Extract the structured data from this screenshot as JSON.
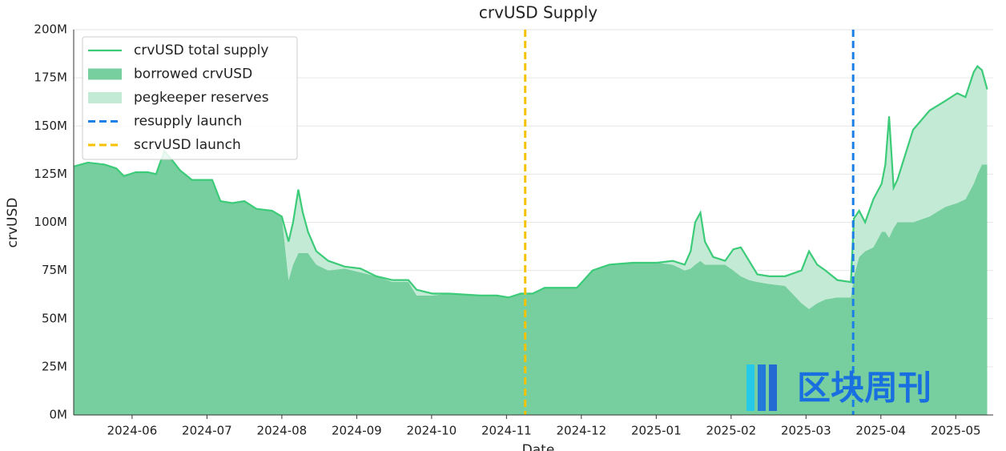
{
  "chart_data": {
    "type": "area",
    "title": "crvUSD Supply",
    "xlabel": "Date",
    "ylabel": "crvUSD",
    "x": [
      5.22,
      5.41,
      5.63,
      5.79,
      5.89,
      6.05,
      6.21,
      6.32,
      6.43,
      6.54,
      6.64,
      6.8,
      7.07,
      7.18,
      7.34,
      7.5,
      7.66,
      7.87,
      8.0,
      8.09,
      8.15,
      8.22,
      8.28,
      8.35,
      8.46,
      8.62,
      8.84,
      9.05,
      9.26,
      9.48,
      9.69,
      9.8,
      10.01,
      10.23,
      10.65,
      10.87,
      11.03,
      11.19,
      11.35,
      11.51,
      11.94,
      12.15,
      12.37,
      12.69,
      13.01,
      13.22,
      13.38,
      13.46,
      13.52,
      13.59,
      13.65,
      13.76,
      13.92,
      14.03,
      14.13,
      14.24,
      14.35,
      14.51,
      14.72,
      14.94,
      15.04,
      15.15,
      15.26,
      15.42,
      15.6,
      15.64,
      15.71,
      15.79,
      15.9,
      16.01,
      16.06,
      16.11,
      16.17,
      16.22,
      16.43,
      16.65,
      16.86,
      17.02,
      17.13,
      17.24,
      17.29,
      17.35,
      17.42
    ],
    "series": [
      {
        "name": "crvUSD total supply",
        "style": "line",
        "color": "#3ccb78",
        "values": [
          129,
          131,
          130,
          128,
          124,
          126,
          126,
          125,
          137,
          132,
          127,
          122,
          122,
          111,
          110,
          111,
          107,
          106,
          103,
          90,
          100,
          117,
          105,
          95,
          85,
          80,
          77,
          76,
          72,
          70,
          70,
          65,
          63,
          63,
          62,
          62,
          61,
          63,
          63,
          66,
          66,
          75,
          78,
          79,
          79,
          80,
          78,
          85,
          100,
          105,
          90,
          82,
          80,
          86,
          87,
          80,
          73,
          72,
          72,
          75,
          85,
          78,
          75,
          70,
          69,
          102,
          106,
          100,
          112,
          120,
          130,
          155,
          118,
          122,
          148,
          158,
          163,
          167,
          165,
          178,
          181,
          179,
          169
        ]
      },
      {
        "name": "borrowed crvUSD",
        "style": "area",
        "color": "#77cf9f",
        "values": [
          129,
          131,
          130,
          128,
          124,
          126,
          126,
          125,
          137,
          132,
          127,
          122,
          122,
          111,
          110,
          111,
          107,
          106,
          103,
          70,
          78,
          84,
          84,
          84,
          78,
          75,
          76,
          74,
          72,
          69,
          69,
          62,
          62,
          63,
          62,
          62,
          61,
          63,
          63,
          66,
          66,
          75,
          78,
          79,
          79,
          78,
          75,
          76,
          78,
          80,
          78,
          78,
          78,
          75,
          72,
          70,
          69,
          68,
          67,
          58,
          55,
          58,
          60,
          61,
          61,
          72,
          82,
          85,
          87,
          95,
          95,
          92,
          97,
          100,
          100,
          103,
          108,
          110,
          112,
          120,
          125,
          130,
          130
        ]
      },
      {
        "name": "pegkeeper reserves",
        "style": "stacked-area",
        "color": "#c3ead4",
        "values": [
          0,
          0,
          0,
          0,
          0,
          0,
          0,
          0,
          0,
          0,
          0,
          0,
          0,
          0,
          0,
          0,
          0,
          0,
          0,
          20,
          22,
          33,
          21,
          11,
          7,
          5,
          1,
          2,
          0,
          1,
          1,
          3,
          1,
          0,
          0,
          0,
          0,
          0,
          0,
          0,
          0,
          0,
          0,
          0,
          0,
          2,
          3,
          9,
          22,
          25,
          12,
          4,
          2,
          11,
          15,
          10,
          4,
          4,
          5,
          17,
          30,
          20,
          15,
          9,
          8,
          30,
          24,
          15,
          25,
          25,
          35,
          63,
          21,
          22,
          48,
          55,
          55,
          57,
          53,
          58,
          56,
          49,
          39
        ]
      }
    ],
    "vlines": [
      {
        "name": "resupply launch",
        "x": 15.63,
        "color": "#1a7fe6"
      },
      {
        "name": "scrvUSD launch",
        "x": 11.25,
        "color": "#f6c200"
      }
    ],
    "xlim": [
      5.22,
      17.5
    ],
    "xticks": [
      {
        "value": 6,
        "label": "2024-06"
      },
      {
        "value": 7,
        "label": "2024-07"
      },
      {
        "value": 8,
        "label": "2024-08"
      },
      {
        "value": 9,
        "label": "2024-09"
      },
      {
        "value": 10,
        "label": "2024-10"
      },
      {
        "value": 11,
        "label": "2024-11"
      },
      {
        "value": 12,
        "label": "2024-12"
      },
      {
        "value": 13,
        "label": "2025-01"
      },
      {
        "value": 14,
        "label": "2025-02"
      },
      {
        "value": 15,
        "label": "2025-03"
      },
      {
        "value": 16,
        "label": "2025-04"
      },
      {
        "value": 17,
        "label": "2025-05"
      }
    ],
    "ylim": [
      0,
      200
    ],
    "yticks": [
      {
        "value": 0,
        "label": "0M"
      },
      {
        "value": 25,
        "label": "25M"
      },
      {
        "value": 50,
        "label": "50M"
      },
      {
        "value": 75,
        "label": "75M"
      },
      {
        "value": 100,
        "label": "100M"
      },
      {
        "value": 125,
        "label": "125M"
      },
      {
        "value": 150,
        "label": "150M"
      },
      {
        "value": 175,
        "label": "175M"
      },
      {
        "value": 200,
        "label": "200M"
      }
    ],
    "grid": true,
    "legend": "upper left",
    "watermark": "区块周刊"
  }
}
